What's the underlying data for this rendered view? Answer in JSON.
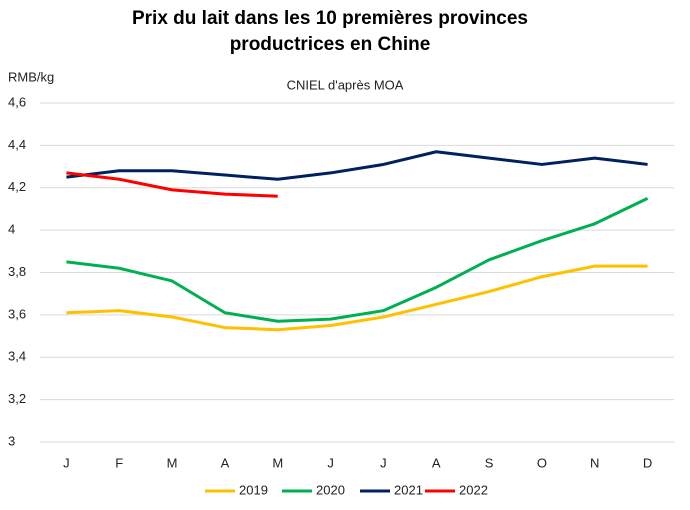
{
  "chart_data": {
    "type": "line",
    "title": "Prix du lait dans les 10 premières provinces productrices en Chine",
    "subtitle": "CNIEL d'après MOA",
    "y_label": "RMB/kg",
    "categories": [
      "J",
      "F",
      "M",
      "A",
      "M",
      "J",
      "J",
      "A",
      "S",
      "O",
      "N",
      "D"
    ],
    "series": [
      {
        "name": "2019",
        "color": "#ffc000",
        "values": [
          3.61,
          3.62,
          3.59,
          3.54,
          3.53,
          3.55,
          3.59,
          3.65,
          3.71,
          3.78,
          3.83,
          3.83
        ]
      },
      {
        "name": "2020",
        "color": "#00b050",
        "values": [
          3.85,
          3.82,
          3.76,
          3.61,
          3.57,
          3.58,
          3.62,
          3.73,
          3.86,
          3.95,
          4.03,
          4.15
        ]
      },
      {
        "name": "2021",
        "color": "#002060",
        "values": [
          4.25,
          4.28,
          4.28,
          4.26,
          4.24,
          4.27,
          4.31,
          4.37,
          4.34,
          4.31,
          4.34,
          4.31
        ]
      },
      {
        "name": "2022",
        "color": "#ff0000",
        "values": [
          4.27,
          4.24,
          4.19,
          4.17,
          4.16,
          null,
          null,
          null,
          null,
          null,
          null,
          null
        ]
      }
    ],
    "ylim": [
      3,
      4.6
    ],
    "yticks": [
      3,
      {
        "value": 3.2,
        "label": "3,2"
      },
      {
        "value": 3.4,
        "label": "3,4"
      },
      {
        "value": 3.6,
        "label": "3,6"
      },
      {
        "value": 3.8,
        "label": "3,8"
      },
      4,
      {
        "value": 4.2,
        "label": "4,2"
      },
      {
        "value": 4.4,
        "label": "4,4"
      },
      {
        "value": 4.6,
        "label": "4,6"
      }
    ],
    "grid": true,
    "legend": "bottom"
  }
}
